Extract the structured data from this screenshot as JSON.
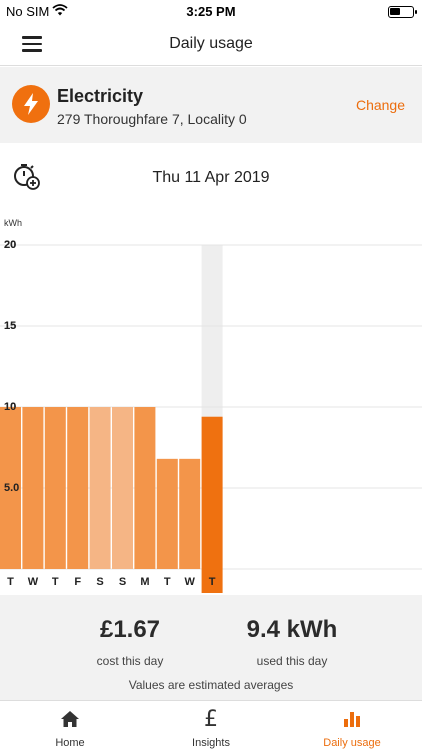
{
  "status_bar": {
    "carrier": "No SIM",
    "time": "3:25 PM"
  },
  "nav": {
    "title": "Daily usage"
  },
  "meter": {
    "name": "Electricity",
    "address": "279 Thoroughfare 7, Locality 0",
    "change_label": "Change"
  },
  "date_bar": {
    "date": "Thu 11 Apr 2019"
  },
  "colors": {
    "accent": "#ec6d0d",
    "bar": "#f3954a",
    "bar_light": "#f5b585",
    "bar_selected": "#ef7110",
    "highlight_bg": "#eeeeee"
  },
  "chart_data": {
    "type": "bar",
    "ylabel": "kWh",
    "ylim": [
      0,
      20
    ],
    "yticks": [
      "20",
      "15",
      "10",
      "5.0"
    ],
    "tick_values": [
      20,
      15,
      10,
      5
    ],
    "categories": [
      "T",
      "W",
      "T",
      "F",
      "S",
      "S",
      "M",
      "T",
      "W",
      "T"
    ],
    "values": [
      10,
      10,
      10,
      10,
      10,
      10,
      10,
      6.8,
      6.8,
      9.4
    ],
    "light_indexes": [
      4,
      5
    ],
    "selected_index": 9
  },
  "summary": {
    "cost_value": "£1.67",
    "cost_label": "cost this day",
    "usage_value": "9.4 kWh",
    "usage_label": "used this day",
    "note": "Values are estimated averages"
  },
  "tabs": [
    {
      "label": "Home",
      "icon": "home-icon"
    },
    {
      "label": "Insights",
      "icon": "pound-icon"
    },
    {
      "label": "Daily usage",
      "icon": "bar-chart-icon",
      "active": true
    }
  ]
}
